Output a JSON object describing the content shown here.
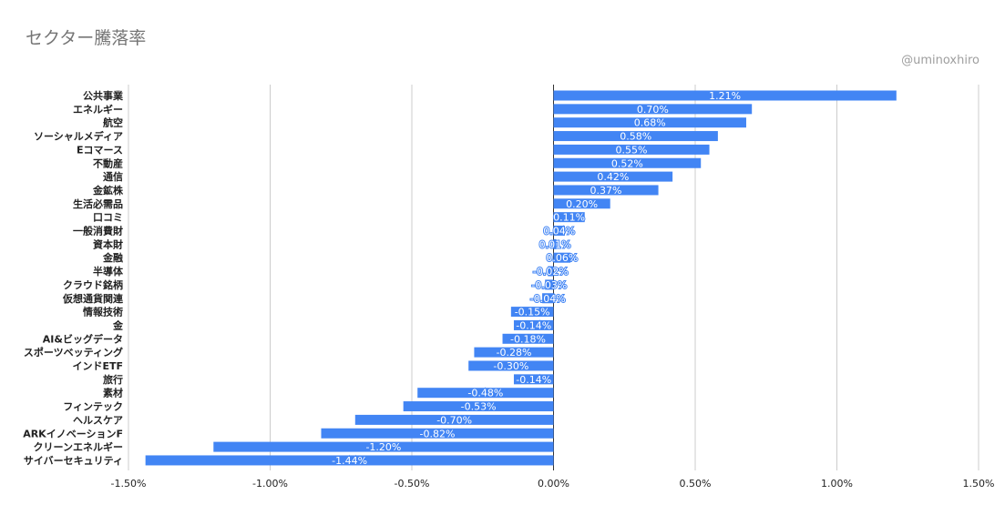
{
  "chart_data": {
    "type": "bar",
    "orientation": "horizontal",
    "title": "セクター騰落率",
    "credit": "@uminoxhiro",
    "bar_color": "#4285f4",
    "grid": true,
    "xlim": [
      -1.5,
      1.5
    ],
    "x_ticks": [
      -1.5,
      -1.0,
      -0.5,
      0.0,
      0.5,
      1.0,
      1.5
    ],
    "x_tick_labels": [
      "-1.50%",
      "-1.00%",
      "-0.50%",
      "0.00%",
      "0.50%",
      "1.00%",
      "1.50%"
    ],
    "categories": [
      "公共事業",
      "エネルギー",
      "航空",
      "ソーシャルメディア",
      "Eコマース",
      "不動産",
      "通信",
      "金鉱株",
      "生活必需品",
      "口コミ",
      "一般消費財",
      "資本財",
      "金融",
      "半導体",
      "クラウド銘柄",
      "仮想通貨関連",
      "情報技術",
      "金",
      "AI&ビッグデータ",
      "スポーツベッティング",
      "インドETF",
      "旅行",
      "素材",
      "フィンテック",
      "ヘルスケア",
      "ARKイノベーションF",
      "クリーンエネルギー",
      "サイバーセキュリティ"
    ],
    "values": [
      1.21,
      0.7,
      0.68,
      0.58,
      0.55,
      0.52,
      0.42,
      0.37,
      0.2,
      0.11,
      0.04,
      0.01,
      0.06,
      -0.02,
      -0.03,
      -0.04,
      -0.15,
      -0.14,
      -0.18,
      -0.28,
      -0.3,
      -0.14,
      -0.48,
      -0.53,
      -0.7,
      -0.82,
      -1.2,
      -1.44
    ],
    "value_labels": [
      "1.21%",
      "0.70%",
      "0.68%",
      "0.58%",
      "0.55%",
      "0.52%",
      "0.42%",
      "0.37%",
      "0.20%",
      "0.11%",
      "0.04%",
      "0.01%",
      "0.06%",
      "-0.02%",
      "-0.03%",
      "-0.04%",
      "-0.15%",
      "-0.14%",
      "-0.18%",
      "-0.28%",
      "-0.30%",
      "-0.14%",
      "-0.48%",
      "-0.53%",
      "-0.70%",
      "-0.82%",
      "-1.20%",
      "-1.44%"
    ]
  }
}
